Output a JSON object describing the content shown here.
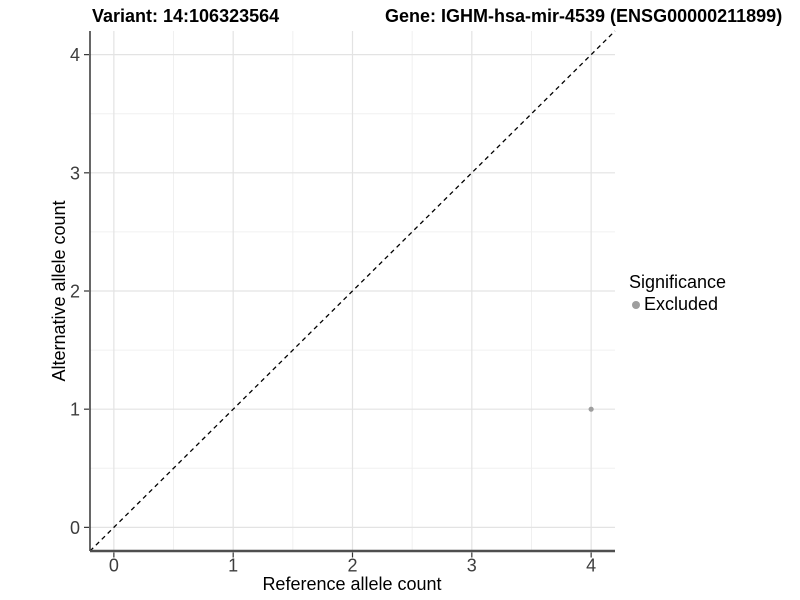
{
  "chart_data": {
    "type": "scatter",
    "title_left": "Variant: 14:106323564",
    "title_right": "Gene: IGHM-hsa-mir-4539 (ENSG00000211899)",
    "xlabel": "Reference allele count",
    "ylabel": "Alternative allele count",
    "xlim": [
      -0.2,
      4.2
    ],
    "ylim": [
      -0.2,
      4.2
    ],
    "x_ticks": [
      0,
      1,
      2,
      3,
      4
    ],
    "y_ticks": [
      0,
      1,
      2,
      3,
      4
    ],
    "x_minor": [
      0.5,
      1.5,
      2.5,
      3.5
    ],
    "y_minor": [
      0.5,
      1.5,
      2.5,
      3.5
    ],
    "grid": "major+minor",
    "legend": {
      "title": "Significance",
      "position": "right",
      "items": [
        {
          "label": "Excluded",
          "color": "#9e9e9e"
        }
      ]
    },
    "series": [
      {
        "name": "Excluded",
        "color": "#9e9e9e",
        "points": [
          {
            "x": 4,
            "y": 1
          }
        ]
      }
    ],
    "reference_line": {
      "kind": "identity y=x",
      "from": [
        -0.2,
        -0.2
      ],
      "to": [
        4.2,
        4.2
      ],
      "style": "dashed",
      "color": "#000000"
    },
    "colors": {
      "background": "#ffffff",
      "grid_major": "#e3e3e3",
      "grid_minor": "#f0f0f0",
      "axis_line_y": "#262626",
      "axis_line_x": "#4f4f4f",
      "tick_mark": "#333333",
      "tick_text": "#3d3d3d",
      "point": "#9e9e9e"
    }
  }
}
